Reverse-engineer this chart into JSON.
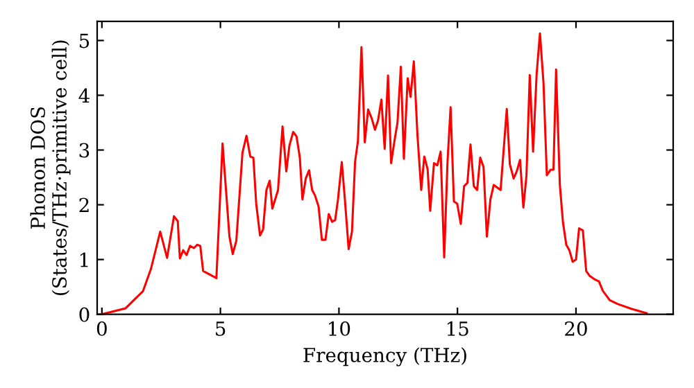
{
  "chart_data": {
    "type": "line",
    "xlabel": "Frequency (THz)",
    "ylabel": "Phonon DOS\n(States/THz·primitive cell)",
    "xlim": [
      -0.2,
      24.1
    ],
    "ylim": [
      0,
      5.35
    ],
    "xticks": [
      0,
      5,
      10,
      15,
      20
    ],
    "yticks": [
      0,
      1,
      2,
      3,
      4,
      5
    ],
    "grid": false,
    "legend": false,
    "marker": "none",
    "line_style": "solid",
    "series": [
      {
        "color": "#ff0000",
        "x": [
          0,
          1.0,
          1.73,
          2.07,
          2.46,
          2.75,
          3.04,
          3.2,
          3.29,
          3.43,
          3.57,
          3.72,
          3.88,
          4.02,
          4.15,
          4.27,
          4.83,
          5.09,
          5.38,
          5.52,
          5.67,
          5.93,
          6.1,
          6.26,
          6.39,
          6.51,
          6.67,
          6.8,
          6.94,
          7.08,
          7.19,
          7.43,
          7.62,
          7.78,
          7.91,
          8.07,
          8.21,
          8.35,
          8.46,
          8.6,
          8.74,
          8.87,
          8.99,
          9.14,
          9.28,
          9.43,
          9.57,
          9.71,
          9.84,
          9.96,
          10.12,
          10.25,
          10.41,
          10.55,
          10.68,
          10.8,
          10.95,
          11.09,
          11.23,
          11.38,
          11.52,
          11.65,
          11.79,
          11.93,
          12.07,
          12.2,
          12.34,
          12.47,
          12.61,
          12.74,
          12.9,
          13.02,
          13.16,
          13.31,
          13.47,
          13.6,
          13.74,
          13.85,
          14.01,
          14.15,
          14.29,
          14.44,
          14.58,
          14.71,
          14.85,
          14.99,
          15.14,
          15.28,
          15.42,
          15.55,
          15.69,
          15.83,
          15.96,
          16.1,
          16.24,
          16.39,
          16.53,
          16.69,
          16.82,
          17.08,
          17.21,
          17.37,
          17.5,
          17.64,
          17.78,
          17.91,
          18.05,
          18.19,
          18.34,
          18.48,
          18.63,
          18.77,
          18.93,
          19.05,
          19.16,
          19.32,
          19.45,
          19.59,
          19.72,
          19.86,
          20.0,
          20.13,
          20.29,
          20.43,
          20.58,
          20.78,
          20.97,
          21.13,
          21.42,
          21.75,
          22.34,
          22.98
        ],
        "values": [
          0,
          0.11,
          0.42,
          0.83,
          1.51,
          1.03,
          1.79,
          1.7,
          1.02,
          1.17,
          1.08,
          1.25,
          1.21,
          1.27,
          1.25,
          0.79,
          0.66,
          3.12,
          1.42,
          1.1,
          1.34,
          2.95,
          3.26,
          2.88,
          2.86,
          2.02,
          1.44,
          1.55,
          2.27,
          2.44,
          1.93,
          2.27,
          3.43,
          2.61,
          3.08,
          3.33,
          3.25,
          2.86,
          2.1,
          2.48,
          2.63,
          2.27,
          2.17,
          1.97,
          1.36,
          1.36,
          1.83,
          1.69,
          1.72,
          2.1,
          2.78,
          2.1,
          1.19,
          1.51,
          2.78,
          3.16,
          4.88,
          3.14,
          3.74,
          3.58,
          3.37,
          3.54,
          3.92,
          3.02,
          4.36,
          2.76,
          3.16,
          3.5,
          4.52,
          2.84,
          4.31,
          3.97,
          4.62,
          3.29,
          2.27,
          2.88,
          2.65,
          1.89,
          2.76,
          2.72,
          2.97,
          1.04,
          2.78,
          3.78,
          2.06,
          2.02,
          1.65,
          2.34,
          2.4,
          3.1,
          2.34,
          2.27,
          2.86,
          2.69,
          1.42,
          2.1,
          2.36,
          2.31,
          2.27,
          3.75,
          2.74,
          2.48,
          2.61,
          2.82,
          1.95,
          2.53,
          4.37,
          2.97,
          4.39,
          5.13,
          4.22,
          2.54,
          2.64,
          2.64,
          4.47,
          2.36,
          1.68,
          1.27,
          1.17,
          0.96,
          1.0,
          1.57,
          1.53,
          0.79,
          0.7,
          0.64,
          0.6,
          0.43,
          0.26,
          0.19,
          0.1,
          0.02
        ]
      }
    ]
  }
}
